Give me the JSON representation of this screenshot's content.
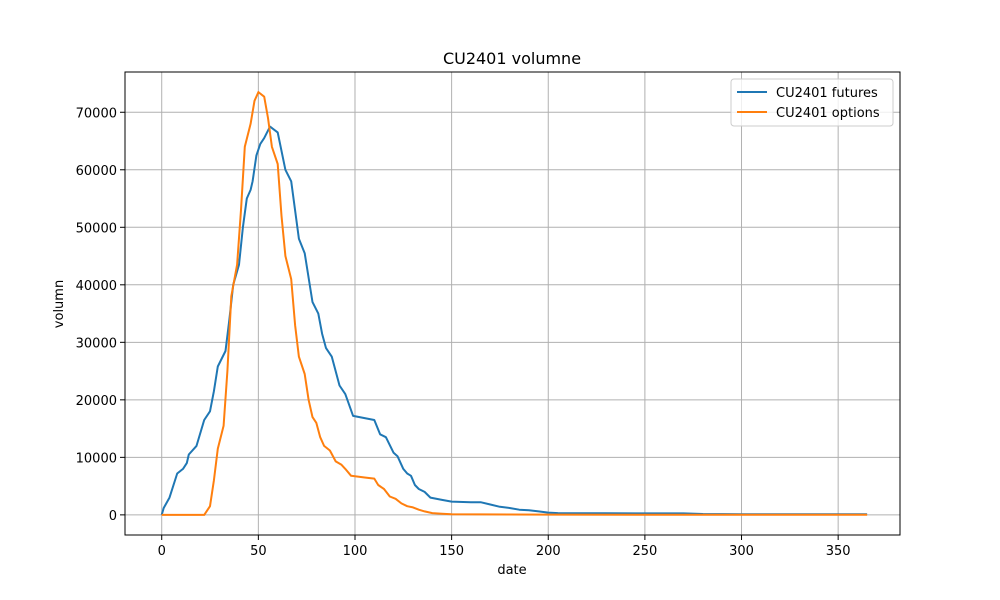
{
  "chart_data": {
    "type": "line",
    "title": "CU2401 volumne",
    "xlabel": "date",
    "ylabel": "volumn",
    "xlim": [
      -19,
      382
    ],
    "ylim": [
      -3500,
      77000
    ],
    "xticks": [
      0,
      50,
      100,
      150,
      200,
      250,
      300,
      350
    ],
    "yticks": [
      0,
      10000,
      20000,
      30000,
      40000,
      50000,
      60000,
      70000
    ],
    "grid": true,
    "legend": "top-right",
    "series": [
      {
        "name": "CU2401 futures",
        "color": "#1f77b4",
        "points": [
          [
            0,
            0
          ],
          [
            1,
            1200
          ],
          [
            4,
            3000
          ],
          [
            8,
            7200
          ],
          [
            11,
            8000
          ],
          [
            13,
            9000
          ],
          [
            14,
            10500
          ],
          [
            18,
            12000
          ],
          [
            22,
            16500
          ],
          [
            25,
            18000
          ],
          [
            27,
            21500
          ],
          [
            29,
            25800
          ],
          [
            33,
            28500
          ],
          [
            35,
            34000
          ],
          [
            37,
            40000
          ],
          [
            40,
            43500
          ],
          [
            42,
            50000
          ],
          [
            44,
            55000
          ],
          [
            46,
            56500
          ],
          [
            47,
            58000
          ],
          [
            49,
            62500
          ],
          [
            51,
            64500
          ],
          [
            53,
            65500
          ],
          [
            56,
            67500
          ],
          [
            60,
            66500
          ],
          [
            64,
            60000
          ],
          [
            67,
            58000
          ],
          [
            71,
            48000
          ],
          [
            74,
            45500
          ],
          [
            78,
            37000
          ],
          [
            81,
            35000
          ],
          [
            83,
            31500
          ],
          [
            85,
            29000
          ],
          [
            88,
            27500
          ],
          [
            92,
            22500
          ],
          [
            95,
            21000
          ],
          [
            99,
            17200
          ],
          [
            110,
            16500
          ],
          [
            113,
            14000
          ],
          [
            116,
            13500
          ],
          [
            120,
            10800
          ],
          [
            122,
            10200
          ],
          [
            125,
            8000
          ],
          [
            127,
            7200
          ],
          [
            129,
            6800
          ],
          [
            131,
            5200
          ],
          [
            133,
            4500
          ],
          [
            136,
            4000
          ],
          [
            139,
            3000
          ],
          [
            145,
            2600
          ],
          [
            150,
            2300
          ],
          [
            160,
            2200
          ],
          [
            165,
            2200
          ],
          [
            170,
            1800
          ],
          [
            175,
            1400
          ],
          [
            180,
            1200
          ],
          [
            185,
            900
          ],
          [
            190,
            800
          ],
          [
            195,
            600
          ],
          [
            200,
            400
          ],
          [
            205,
            300
          ],
          [
            230,
            280
          ],
          [
            270,
            250
          ],
          [
            280,
            150
          ],
          [
            300,
            100
          ],
          [
            365,
            100
          ]
        ]
      },
      {
        "name": "CU2401 options",
        "color": "#ff7f0e",
        "points": [
          [
            0,
            0
          ],
          [
            20,
            0
          ],
          [
            22,
            0
          ],
          [
            24,
            1000
          ],
          [
            25,
            1500
          ],
          [
            27,
            6000
          ],
          [
            29,
            11500
          ],
          [
            32,
            15500
          ],
          [
            34,
            25000
          ],
          [
            36,
            38000
          ],
          [
            39,
            43500
          ],
          [
            41,
            53000
          ],
          [
            43,
            64000
          ],
          [
            46,
            68000
          ],
          [
            48,
            72000
          ],
          [
            50,
            73500
          ],
          [
            53,
            72700
          ],
          [
            55,
            69000
          ],
          [
            57,
            64000
          ],
          [
            60,
            61000
          ],
          [
            62,
            52000
          ],
          [
            64,
            45000
          ],
          [
            67,
            41000
          ],
          [
            69,
            33000
          ],
          [
            71,
            27500
          ],
          [
            74,
            24500
          ],
          [
            76,
            20000
          ],
          [
            78,
            17000
          ],
          [
            80,
            16000
          ],
          [
            82,
            13500
          ],
          [
            84,
            12000
          ],
          [
            87,
            11200
          ],
          [
            90,
            9300
          ],
          [
            93,
            8700
          ],
          [
            95,
            8000
          ],
          [
            98,
            6800
          ],
          [
            105,
            6500
          ],
          [
            110,
            6300
          ],
          [
            112,
            5200
          ],
          [
            115,
            4500
          ],
          [
            118,
            3200
          ],
          [
            121,
            2800
          ],
          [
            124,
            2000
          ],
          [
            127,
            1500
          ],
          [
            130,
            1300
          ],
          [
            133,
            900
          ],
          [
            136,
            600
          ],
          [
            140,
            300
          ],
          [
            145,
            200
          ],
          [
            150,
            100
          ],
          [
            200,
            50
          ],
          [
            250,
            30
          ],
          [
            300,
            30
          ],
          [
            365,
            30
          ]
        ]
      }
    ]
  }
}
